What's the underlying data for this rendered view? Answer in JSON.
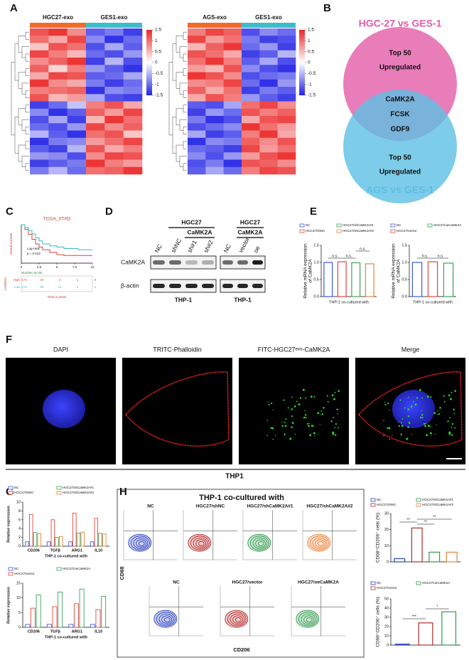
{
  "A": {
    "label": "A",
    "heatmaps": [
      {
        "groups": [
          {
            "name": "HGC27-exo",
            "color": "#f26a2a"
          },
          {
            "name": "GES1-exo",
            "color": "#3dbdc6"
          }
        ],
        "clim": [
          -1.5,
          1.5
        ],
        "colorbar_ticks": [
          1.5,
          1,
          0.5,
          0,
          -0.5,
          -1,
          -1.5
        ],
        "values": [
          [
            1.2,
            1.4,
            0.8,
            -1.1,
            -0.9,
            -1.3
          ],
          [
            1.0,
            0.6,
            1.3,
            -0.8,
            -1.4,
            -1.0
          ],
          [
            0.4,
            1.2,
            1.0,
            -1.2,
            -0.6,
            -1.1
          ],
          [
            1.3,
            0.9,
            0.5,
            -1.0,
            -1.2,
            -0.7
          ],
          [
            0.8,
            1.1,
            1.4,
            -1.3,
            -0.5,
            -1.2
          ],
          [
            1.1,
            0.3,
            0.9,
            -0.7,
            -1.1,
            -1.4
          ],
          [
            0.6,
            1.3,
            1.2,
            -1.1,
            -1.0,
            -0.6
          ],
          [
            1.4,
            0.8,
            0.6,
            -0.9,
            -1.3,
            -1.0
          ],
          [
            0.9,
            1.0,
            1.1,
            -1.4,
            -0.8,
            -0.9
          ],
          [
            1.2,
            0.5,
            0.7,
            -0.6,
            -1.2,
            -1.3
          ],
          [
            -1.3,
            -1.0,
            -0.4,
            0.9,
            1.2,
            0.6
          ],
          [
            -0.8,
            -1.4,
            -1.1,
            1.1,
            0.7,
            1.3
          ],
          [
            -1.2,
            -0.6,
            -1.3,
            0.5,
            1.4,
            1.0
          ],
          [
            -1.0,
            -1.2,
            -0.7,
            1.3,
            0.8,
            1.1
          ],
          [
            -0.5,
            -1.1,
            -1.4,
            1.0,
            1.2,
            0.4
          ],
          [
            -1.4,
            -0.9,
            -0.8,
            0.7,
            1.0,
            1.3
          ],
          [
            -1.1,
            -1.3,
            -0.5,
            1.2,
            0.6,
            0.9
          ],
          [
            -0.7,
            -0.8,
            -1.2,
            0.8,
            1.3,
            1.2
          ],
          [
            -1.3,
            -1.1,
            -0.9,
            1.4,
            0.9,
            0.7
          ],
          [
            -0.9,
            -0.5,
            -1.0,
            1.0,
            1.1,
            1.4
          ]
        ]
      },
      {
        "groups": [
          {
            "name": "AGS-exo",
            "color": "#f26a2a"
          },
          {
            "name": "GES1-exo",
            "color": "#3dbdc6"
          }
        ],
        "clim": [
          -1.5,
          1.5
        ],
        "colorbar_ticks": [
          1.5,
          1,
          0.5,
          0,
          -0.5,
          -1,
          -1.5
        ],
        "values": [
          [
            0.9,
            1.3,
            1.1,
            -1.2,
            -0.8,
            -1.0
          ],
          [
            1.3,
            0.7,
            1.0,
            -0.9,
            -1.3,
            -1.2
          ],
          [
            0.5,
            1.1,
            1.4,
            -1.0,
            -0.7,
            -1.3
          ],
          [
            1.2,
            1.0,
            0.6,
            -1.3,
            -1.1,
            -0.5
          ],
          [
            1.0,
            1.4,
            0.9,
            -1.1,
            -0.6,
            -1.2
          ],
          [
            0.7,
            0.5,
            1.2,
            -0.8,
            -1.2,
            -1.4
          ],
          [
            1.4,
            1.2,
            0.8,
            -1.2,
            -1.0,
            -0.9
          ],
          [
            0.8,
            0.9,
            1.3,
            -1.0,
            -1.4,
            -0.7
          ],
          [
            1.1,
            0.6,
            1.0,
            -1.3,
            -0.9,
            -1.1
          ],
          [
            0.6,
            1.2,
            0.9,
            -0.7,
            -1.1,
            -1.3
          ],
          [
            -1.1,
            -1.2,
            -0.6,
            1.0,
            1.3,
            0.8
          ],
          [
            -1.3,
            -0.7,
            -1.0,
            1.2,
            0.9,
            1.1
          ],
          [
            -0.9,
            -1.4,
            -1.2,
            0.6,
            1.2,
            1.3
          ],
          [
            -1.2,
            -1.0,
            -0.8,
            1.4,
            1.0,
            0.7
          ],
          [
            -0.6,
            -1.3,
            -1.1,
            0.9,
            1.4,
            0.6
          ],
          [
            -1.4,
            -0.8,
            -0.9,
            1.1,
            0.8,
            1.2
          ],
          [
            -1.0,
            -1.1,
            -1.3,
            1.3,
            0.7,
            1.0
          ],
          [
            -0.8,
            -1.2,
            -0.7,
            0.7,
            1.2,
            1.4
          ],
          [
            -1.2,
            -0.9,
            -1.4,
            1.2,
            1.1,
            0.8
          ],
          [
            -1.1,
            -0.6,
            -1.0,
            0.9,
            1.3,
            1.2
          ]
        ]
      }
    ]
  },
  "B": {
    "label": "B",
    "top_title": "HGC-27 vs GES-1",
    "bottom_title": "AGS vs GES-1",
    "top_text": [
      "Top 50",
      "Upregulated"
    ],
    "overlap": [
      "CaMK2A",
      "FCSK",
      "GDF9"
    ],
    "bottom_text": [
      "Top 50",
      "Upregulated"
    ]
  },
  "C": {
    "label": "C",
    "title": "TCGA_STAD",
    "y_label": "Overall survival",
    "annotation": [
      "Log-rank",
      "p = 0.012"
    ],
    "x_label": "Time in years",
    "xlim": [
      0,
      10
    ],
    "xticks": [
      0,
      2.5,
      5,
      7.5,
      10
    ],
    "ylim": [
      0,
      1
    ],
    "series": [
      {
        "name": "High",
        "color": "#d9463a",
        "x": [
          0,
          0.5,
          1,
          1.5,
          2,
          2.5,
          3,
          4,
          5,
          6,
          8,
          10
        ],
        "y": [
          1,
          0.88,
          0.75,
          0.62,
          0.5,
          0.42,
          0.35,
          0.28,
          0.22,
          0.2,
          0.2,
          0.2
        ]
      },
      {
        "name": "Low",
        "color": "#3cb6c6",
        "x": [
          0,
          0.5,
          1,
          1.5,
          2,
          2.5,
          3,
          4,
          5,
          6,
          8,
          10
        ],
        "y": [
          1,
          0.93,
          0.85,
          0.76,
          0.66,
          0.58,
          0.5,
          0.45,
          0.42,
          0.38,
          0.35,
          0.35
        ]
      }
    ],
    "risk_title": "Number at risk",
    "risk_label": "CAMK2A",
    "risk": [
      [
        174,
        30,
        3,
        1,
        0
      ],
      [
        174,
        50,
        11,
        2,
        1
      ]
    ]
  },
  "D": {
    "label": "D",
    "rows": [
      "CaMK2A",
      "β-actin"
    ],
    "blots": [
      {
        "group": "HGC27",
        "subgroup": "CaMK2A",
        "lanes": [
          "NC",
          "shNC",
          "sh#1",
          "sh#2"
        ],
        "cells": "THP-1"
      },
      {
        "group": "HGC27",
        "subgroup": "CaMK2A",
        "lanes": [
          "NC",
          "vector",
          "oe"
        ],
        "cells": "THP-1"
      }
    ]
  },
  "E": {
    "label": "E",
    "charts": [
      {
        "names": [
          "NC",
          "HGC27/shNC",
          "HGC27/shCaMK2A#1",
          "HGC27/shCaMK2A#2"
        ],
        "colors": [
          "#3b5bdb",
          "#e0463c",
          "#3aa35a",
          "#e8833a"
        ],
        "values": [
          1.0,
          1.02,
          0.99,
          0.96
        ],
        "ylim": [
          0,
          1.5
        ],
        "yticks": [
          {
            "value": 0,
            "label": "0.0"
          },
          {
            "value": 0.5,
            "label": "0.5"
          },
          {
            "value": 1,
            "label": "1.0"
          },
          {
            "value": 1.5,
            "label": "1.5"
          }
        ],
        "y_label": [
          "Relative mRNA expression",
          "of CaMK2A"
        ],
        "x_label": "THP-1 co-cultured with",
        "annotations": [
          "n.s.",
          "n.s.",
          "n.s."
        ]
      },
      {
        "names": [
          "NC",
          "HGC27/vector",
          "HGC27/oeCaMK2A"
        ],
        "colors": [
          "#3b5bdb",
          "#e0463c",
          "#3aa35a"
        ],
        "values": [
          1.0,
          1.02,
          0.98
        ],
        "ylim": [
          0,
          1.5
        ],
        "yticks": [
          {
            "value": 0,
            "label": "0.0"
          },
          {
            "value": 0.5,
            "label": "0.5"
          },
          {
            "value": 1,
            "label": "1.0"
          },
          {
            "value": 1.5,
            "label": "1.5"
          }
        ],
        "y_label": [
          "Relative mRNA expression",
          "of CaMK2A"
        ],
        "x_label": "THP-1 co-cultured with",
        "annotations": [
          "n.s.",
          "n.s."
        ]
      }
    ]
  },
  "F": {
    "label": "F",
    "titles": [
      "DAPI",
      "TRITC-Phalloidin",
      "FITC-HGC27ᵉˣᵒ-CaMK2A",
      "Merge"
    ],
    "cells": "THP1"
  },
  "G": {
    "label": "G",
    "charts": [
      {
        "categories": [
          "CD206",
          "TGFβ",
          "ARG1",
          "IL10"
        ],
        "ylim": [
          0,
          10
        ],
        "yticks": [
          0,
          2,
          4,
          6,
          8,
          10
        ],
        "series": [
          {
            "name": "NC",
            "color": "#3b5bdb",
            "values": [
              1,
              1,
              1,
              1
            ]
          },
          {
            "name": "HGC27/shNC",
            "color": "#e0463c",
            "values": [
              7.2,
              6.0,
              7.5,
              6.3
            ]
          },
          {
            "name": "HGC27/shCaMK2A#1",
            "color": "#3aa35a",
            "values": [
              3.1,
              2.0,
              3.0,
              2.9
            ]
          },
          {
            "name": "HGC27/shCaMK2A#2",
            "color": "#e8833a",
            "values": [
              2.9,
              2.2,
              3.2,
              2.8
            ]
          }
        ],
        "y_label": "Relative expression",
        "x_label": "THP-1 co-cultured with"
      },
      {
        "categories": [
          "CD206",
          "TGFβ",
          "ARG1",
          "IL10"
        ],
        "ylim": [
          0,
          15
        ],
        "yticks": [
          0,
          5,
          10,
          15
        ],
        "series": [
          {
            "name": "NC",
            "color": "#3b5bdb",
            "values": [
              1,
              1,
              1,
              1
            ]
          },
          {
            "name": "HGC27/vector",
            "color": "#e0463c",
            "values": [
              6.5,
              7.0,
              8.0,
              6.0
            ]
          },
          {
            "name": "HGC27/oeCaMK2A",
            "color": "#3aa35a",
            "values": [
              11,
              12,
              13,
              10.5
            ]
          }
        ],
        "y_label": "Relative expression",
        "x_label": "THP-1 co-cultured with"
      }
    ]
  },
  "H": {
    "label": "H",
    "title": "THP-1 co-cultured with",
    "flow": [
      [
        "NC",
        "HGC27/shNC",
        "HGC27/shCaMK2A#1",
        "HGC27/shCaMK2A#2"
      ],
      [
        "NC",
        "HGC27/vector",
        "HGC27/oeCaMK2A"
      ]
    ],
    "y_axis": "CD68",
    "x_axis": "CD206",
    "charts": [
      {
        "names": [
          "NC",
          "HGC27/shNC",
          "HGC27/shCaMK2A#1",
          "HGC27/shCaMK2A#2"
        ],
        "colors": [
          "#2a3fbf",
          "#b52a2a",
          "#2f9a4a",
          "#e8833a"
        ],
        "values": [
          2,
          21,
          6,
          6
        ],
        "ylim": [
          0,
          30
        ],
        "yticks": [
          0,
          10,
          20,
          30
        ],
        "y_label": "CD68⁺CD206⁺ cells (%)",
        "annotations": [
          "**",
          "**",
          "**"
        ]
      },
      {
        "names": [
          "NC",
          "HGC27/vector",
          "HGC27/oeCaMK2A"
        ],
        "colors": [
          "#2a3fbf",
          "#b52a2a",
          "#2f9a4a"
        ],
        "values": [
          1,
          24,
          36
        ],
        "ylim": [
          0,
          50
        ],
        "yticks": [
          0,
          10,
          20,
          30,
          40,
          50
        ],
        "y_label": "CD68⁺CD206⁺ cells (%)",
        "annotations": [
          "***",
          "*"
        ]
      }
    ]
  }
}
